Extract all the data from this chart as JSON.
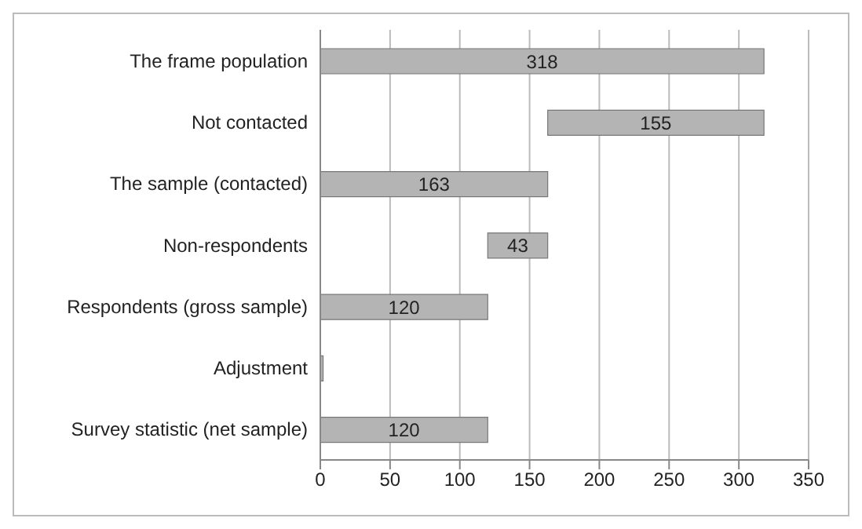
{
  "chart_data": {
    "type": "bar",
    "orientation": "horizontal",
    "categories": [
      "The frame population",
      "Not contacted",
      "The sample (contacted)",
      "Non-respondents",
      "Respondents (gross sample)",
      "Adjustment",
      "Survey statistic (net sample)"
    ],
    "values": [
      318,
      155,
      163,
      43,
      120,
      2,
      120
    ],
    "base": [
      0,
      163,
      0,
      120,
      0,
      0,
      0
    ],
    "value_labels": [
      "318",
      "155",
      "163",
      "43",
      "120",
      null,
      "120"
    ],
    "color": "#b4b4b4",
    "xlim": [
      0,
      350
    ],
    "xticks": [
      0,
      50,
      100,
      150,
      200,
      250,
      300,
      350
    ],
    "grid": "x"
  }
}
